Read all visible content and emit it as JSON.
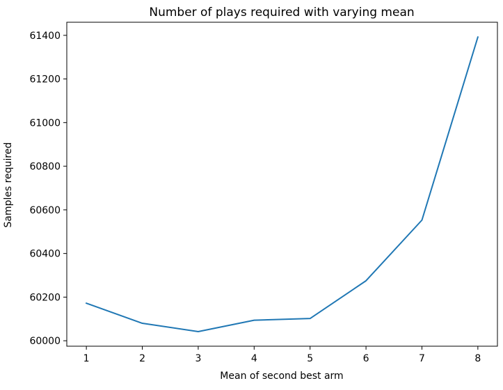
{
  "chart_data": {
    "type": "line",
    "title": "Number of plays required with varying mean",
    "xlabel": "Mean of second best arm",
    "ylabel": "Samples required",
    "x": [
      1,
      2,
      3,
      4,
      5,
      6,
      7,
      8
    ],
    "series": [
      {
        "values": [
          60172,
          60080,
          60042,
          60094,
          60102,
          60275,
          60553,
          61392
        ],
        "color": "#1f77b4"
      }
    ],
    "xticks": [
      "1",
      "2",
      "3",
      "4",
      "5",
      "6",
      "7",
      "8"
    ],
    "xtick_values": [
      1,
      2,
      3,
      4,
      5,
      6,
      7,
      8
    ],
    "yticks": [
      "60000",
      "60200",
      "60400",
      "60600",
      "60800",
      "61000",
      "61200",
      "61400"
    ],
    "ytick_values": [
      60000,
      60200,
      60400,
      60600,
      60800,
      61000,
      61200,
      61400
    ],
    "xlim": [
      0.65,
      8.35
    ],
    "ylim": [
      59975,
      61460
    ],
    "grid": false,
    "legend": false
  }
}
